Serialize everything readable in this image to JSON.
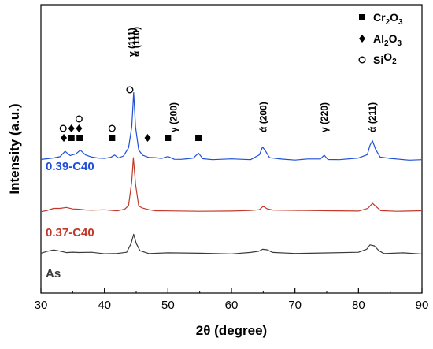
{
  "chart_data": {
    "type": "line",
    "xlabel": "2θ (degree)",
    "ylabel": "Intensity (a.u.)",
    "xlim": [
      30,
      90
    ],
    "xticks": [
      30,
      40,
      50,
      60,
      70,
      80,
      90
    ],
    "grid": false,
    "legend_position": "top-right",
    "series": [
      {
        "name": "0.39-C40",
        "color": "#1f4fd8",
        "baseline": 0.0,
        "points": [
          [
            30,
            0
          ],
          [
            31,
            0.3
          ],
          [
            32,
            0.6
          ],
          [
            33,
            0.9
          ],
          [
            33.8,
            2.2
          ],
          [
            34.6,
            1.2
          ],
          [
            35.5,
            1.6
          ],
          [
            36.2,
            2.4
          ],
          [
            37,
            1.2
          ],
          [
            38,
            0.8
          ],
          [
            39,
            0.6
          ],
          [
            40,
            0.4
          ],
          [
            41,
            0.5
          ],
          [
            41.6,
            1.3
          ],
          [
            42.2,
            0.5
          ],
          [
            43,
            0.9
          ],
          [
            43.8,
            2.8
          ],
          [
            44.3,
            8
          ],
          [
            44.6,
            16
          ],
          [
            44.9,
            8
          ],
          [
            45.4,
            2.2
          ],
          [
            46,
            1.2
          ],
          [
            47,
            0.5
          ],
          [
            48,
            0.4
          ],
          [
            49,
            0.3
          ],
          [
            50,
            0.9
          ],
          [
            51,
            0.3
          ],
          [
            52,
            0.2
          ],
          [
            53,
            0.2
          ],
          [
            54,
            0.3
          ],
          [
            54.8,
            1.5
          ],
          [
            55.5,
            0.3
          ],
          [
            57,
            0.2
          ],
          [
            60,
            0.1
          ],
          [
            63,
            0.2
          ],
          [
            64.4,
            1.1
          ],
          [
            64.9,
            3.2
          ],
          [
            65.4,
            2
          ],
          [
            66,
            0.4
          ],
          [
            68,
            0.2
          ],
          [
            70,
            0.1
          ],
          [
            72,
            0.1
          ],
          [
            74,
            0.2
          ],
          [
            74.6,
            1
          ],
          [
            75.2,
            0.2
          ],
          [
            77,
            0.1
          ],
          [
            80,
            0.4
          ],
          [
            81.4,
            1.2
          ],
          [
            81.8,
            3.5
          ],
          [
            82.2,
            4.6
          ],
          [
            82.7,
            2.6
          ],
          [
            83.4,
            0.6
          ],
          [
            85,
            0.2
          ],
          [
            88,
            0.1
          ],
          [
            90,
            0
          ]
        ]
      },
      {
        "name": "0.37-C40",
        "color": "#c0392b",
        "baseline": 0.0,
        "points": [
          [
            30,
            0
          ],
          [
            31,
            0.5
          ],
          [
            32,
            1.1
          ],
          [
            33,
            0.9
          ],
          [
            34,
            1.3
          ],
          [
            35,
            0.9
          ],
          [
            36,
            1
          ],
          [
            37,
            0.7
          ],
          [
            38,
            0.4
          ],
          [
            40,
            0.3
          ],
          [
            42,
            0.3
          ],
          [
            43.2,
            0.8
          ],
          [
            43.8,
            2.5
          ],
          [
            44.3,
            12
          ],
          [
            44.55,
            22
          ],
          [
            44.9,
            11
          ],
          [
            45.4,
            2.2
          ],
          [
            46,
            1
          ],
          [
            47,
            0.5
          ],
          [
            48,
            0.3
          ],
          [
            50,
            0.2
          ],
          [
            55,
            0.2
          ],
          [
            60,
            0.1
          ],
          [
            63,
            0.2
          ],
          [
            64.4,
            0.8
          ],
          [
            65,
            1.8
          ],
          [
            65.6,
            0.9
          ],
          [
            66.5,
            0.3
          ],
          [
            70,
            0.1
          ],
          [
            75,
            0.2
          ],
          [
            80,
            0.3
          ],
          [
            81.5,
            1.2
          ],
          [
            82.2,
            3
          ],
          [
            82.8,
            1.8
          ],
          [
            83.5,
            0.4
          ],
          [
            86,
            0.2
          ],
          [
            90,
            0
          ]
        ]
      },
      {
        "name": "As",
        "color": "#3a3a3a",
        "baseline": 0.0,
        "points": [
          [
            30,
            0.2
          ],
          [
            31,
            0.9
          ],
          [
            32,
            1.6
          ],
          [
            33,
            1.3
          ],
          [
            34,
            0.8
          ],
          [
            35,
            1
          ],
          [
            36,
            0.6
          ],
          [
            38,
            0.4
          ],
          [
            40,
            0.2
          ],
          [
            42,
            0.2
          ],
          [
            43.5,
            1
          ],
          [
            44.2,
            5
          ],
          [
            44.6,
            9.5
          ],
          [
            45,
            5
          ],
          [
            45.6,
            1.2
          ],
          [
            47,
            0.4
          ],
          [
            50,
            0.1
          ],
          [
            55,
            0.1
          ],
          [
            60,
            0.1
          ],
          [
            63,
            0.4
          ],
          [
            64.3,
            1.4
          ],
          [
            64.9,
            2.3
          ],
          [
            65.6,
            1.7
          ],
          [
            66.5,
            0.5
          ],
          [
            70,
            0.1
          ],
          [
            75,
            0.1
          ],
          [
            80,
            0.5
          ],
          [
            81.3,
            2.4
          ],
          [
            81.8,
            4
          ],
          [
            82.5,
            3.8
          ],
          [
            83.2,
            1.8
          ],
          [
            84,
            0.4
          ],
          [
            87,
            0.1
          ],
          [
            90,
            0.1
          ]
        ]
      }
    ],
    "series_labels": [
      "0.39-C40",
      "0.37-C40",
      "As"
    ],
    "peak_labels": [
      {
        "text": "γ (111)",
        "x": 44.3
      },
      {
        "text": "ά (110)",
        "x": 45.0
      },
      {
        "text": "γ (200)",
        "x": 50.9
      },
      {
        "text": "ά (200)",
        "x": 65.0
      },
      {
        "text": "γ (220)",
        "x": 74.6
      },
      {
        "text": "ά (211)",
        "x": 82.2
      }
    ],
    "markers": [
      {
        "shape": "circle",
        "x": 33.5,
        "level": 2
      },
      {
        "shape": "diamond",
        "x": 33.6,
        "level": 1
      },
      {
        "shape": "square",
        "x": 34.8,
        "level": 1
      },
      {
        "shape": "diamond",
        "x": 34.8,
        "level": 2
      },
      {
        "shape": "diamond",
        "x": 36.0,
        "level": 2
      },
      {
        "shape": "square",
        "x": 36.1,
        "level": 1
      },
      {
        "shape": "circle",
        "x": 36.0,
        "level": 3
      },
      {
        "shape": "circle",
        "x": 41.2,
        "level": 2
      },
      {
        "shape": "square",
        "x": 41.2,
        "level": 1
      },
      {
        "shape": "circle",
        "x": 44.0,
        "level": 4
      },
      {
        "shape": "diamond",
        "x": 46.8,
        "level": 1
      },
      {
        "shape": "square",
        "x": 50.0,
        "level": 1
      },
      {
        "shape": "square",
        "x": 54.8,
        "level": 1
      }
    ],
    "legend": [
      {
        "shape": "square",
        "text": "Cr",
        "sub1": "2",
        "mid": "O",
        "sub2": "3"
      },
      {
        "shape": "diamond",
        "text": "Al",
        "sub1": "2",
        "mid": "O",
        "sub2": "3"
      },
      {
        "shape": "circle",
        "text": "Si",
        "sub1": "",
        "mid": "O",
        "sub2": "2"
      }
    ]
  }
}
